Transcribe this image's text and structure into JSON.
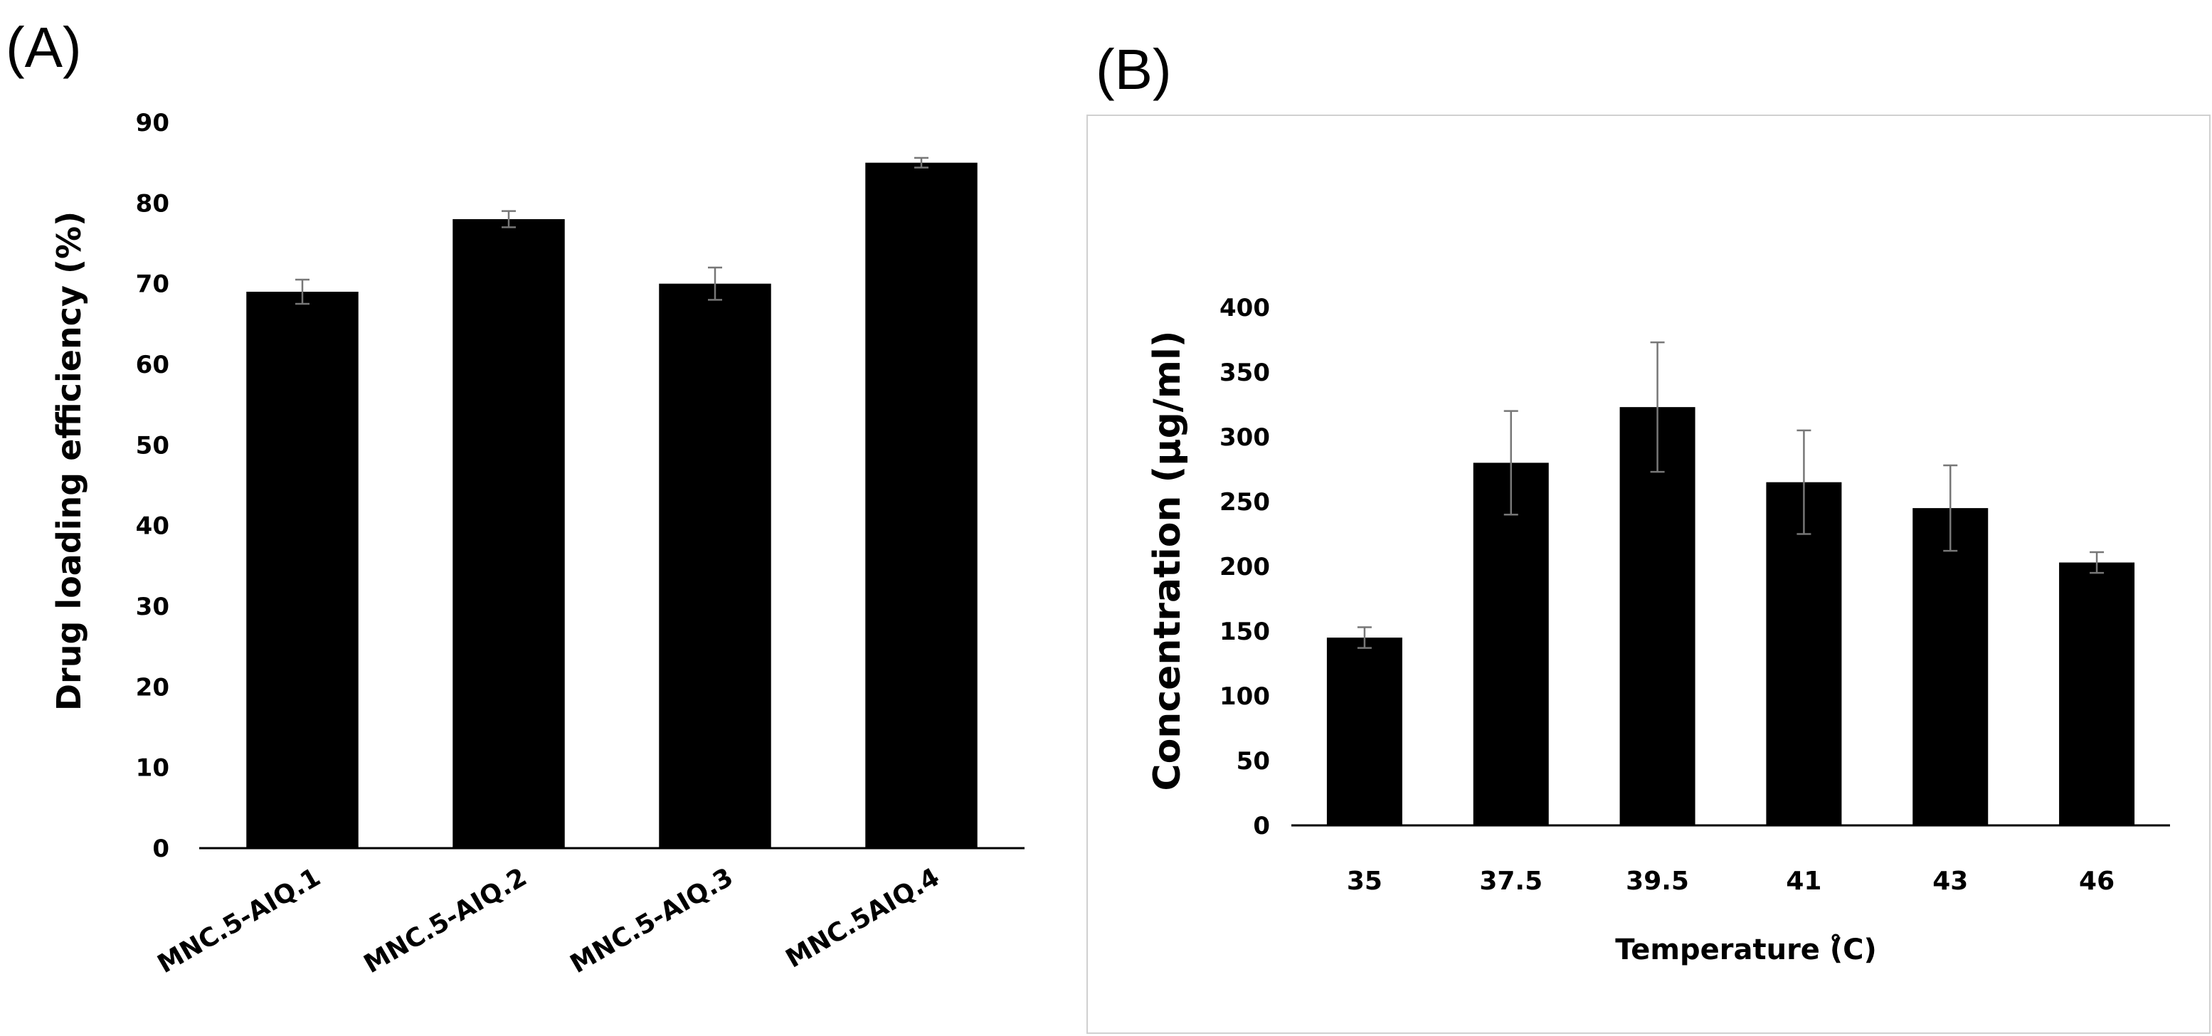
{
  "chart_data": [
    {
      "panel": "(A)",
      "type": "bar",
      "categories": [
        "MNC.5-AIQ.1",
        "MNC.5-AIQ.2",
        "MNC.5-AIQ.3",
        "MNC.5AIQ.4"
      ],
      "values": [
        69,
        78,
        70,
        85
      ],
      "errors": [
        1.5,
        1.0,
        2.0,
        0.6
      ],
      "ylabel": "Drug loading efficiency (%)",
      "xlabel": "",
      "ylim": [
        0,
        90
      ],
      "yticks": [
        0,
        10,
        20,
        30,
        40,
        50,
        60,
        70,
        80,
        90
      ],
      "bar_color": "#000000",
      "grid": false,
      "legend": "none"
    },
    {
      "panel": "(B)",
      "type": "bar",
      "categories": [
        "35",
        "37.5",
        "39.5",
        "41",
        "43",
        "46"
      ],
      "values": [
        145,
        280,
        323,
        265,
        245,
        203
      ],
      "errors": [
        8,
        40,
        50,
        40,
        33,
        8
      ],
      "ylabel": "Concentration (µg/ml)",
      "xlabel": "Temperature (̊C)",
      "ylim": [
        0,
        400
      ],
      "yticks": [
        0,
        50,
        100,
        150,
        200,
        250,
        300,
        350,
        400
      ],
      "bar_color": "#000000",
      "grid": false,
      "legend": "none"
    }
  ]
}
